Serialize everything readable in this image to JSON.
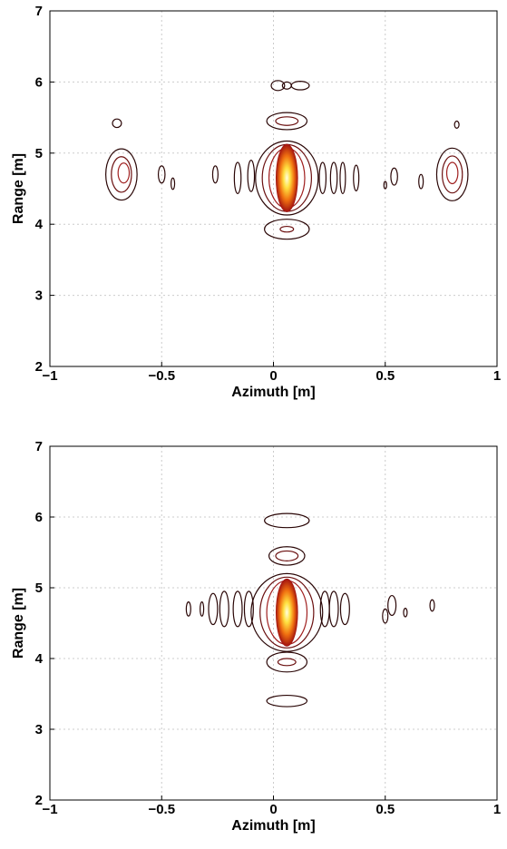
{
  "chart_data": [
    {
      "type": "contour",
      "xlabel": "Azimuth [m]",
      "ylabel": "Range [m]",
      "xlim": [
        -1,
        1
      ],
      "ylim": [
        2,
        7
      ],
      "xticks": [
        {
          "value": -1,
          "label": "−1"
        },
        {
          "value": -0.5,
          "label": "−0.5"
        },
        0,
        0.5,
        1
      ],
      "yticks": [
        2,
        3,
        4,
        5,
        6,
        7
      ],
      "grid": true,
      "peak": {
        "x": 0.06,
        "y": 4.65,
        "rx": 0.05,
        "ry": 0.48
      },
      "levels": [
        {
          "color": "#2a0606",
          "x": [
            0.06,
            0.06,
            0.06,
            0.06,
            0.02,
            0.12,
            -0.68,
            -0.7,
            0.8,
            0.82,
            -0.5,
            -0.45,
            -0.26,
            -0.16,
            -0.1,
            0.22,
            0.27,
            0.31,
            0.37,
            0.54,
            0.5,
            0.66
          ],
          "y": [
            4.65,
            5.45,
            3.93,
            5.95,
            5.95,
            5.95,
            4.7,
            5.42,
            4.7,
            5.4,
            4.7,
            4.57,
            4.7,
            4.65,
            4.68,
            4.65,
            4.65,
            4.65,
            4.65,
            4.67,
            4.55,
            4.6
          ],
          "rx": [
            0.14,
            0.09,
            0.1,
            0.02,
            0.03,
            0.04,
            0.07,
            0.02,
            0.07,
            0.01,
            0.015,
            0.008,
            0.012,
            0.015,
            0.015,
            0.015,
            0.015,
            0.012,
            0.012,
            0.015,
            0.006,
            0.01
          ],
          "ry": [
            0.52,
            0.12,
            0.14,
            0.05,
            0.07,
            0.06,
            0.36,
            0.06,
            0.37,
            0.05,
            0.12,
            0.08,
            0.12,
            0.22,
            0.22,
            0.22,
            0.22,
            0.22,
            0.18,
            0.12,
            0.05,
            0.1
          ]
        },
        {
          "color": "#6b1010",
          "x": [
            0.06,
            0.06,
            -0.68,
            0.8,
            0.06
          ],
          "y": [
            4.65,
            5.45,
            4.7,
            4.7,
            3.93
          ],
          "rx": [
            0.11,
            0.05,
            0.045,
            0.045,
            0.03
          ],
          "ry": [
            0.47,
            0.06,
            0.25,
            0.26,
            0.04
          ]
        },
        {
          "color": "#a02020",
          "x": [
            0.06,
            -0.67,
            0.8
          ],
          "y": [
            4.65,
            4.72,
            4.72
          ],
          "rx": [
            0.08,
            0.025,
            0.025
          ],
          "ry": [
            0.42,
            0.14,
            0.15
          ]
        }
      ]
    },
    {
      "type": "contour",
      "xlabel": "Azimuth [m]",
      "ylabel": "Range [m]",
      "xlim": [
        -1,
        1
      ],
      "ylim": [
        2,
        7
      ],
      "xticks": [
        {
          "value": -1,
          "label": "−1"
        },
        {
          "value": -0.5,
          "label": "−0.5"
        },
        0,
        0.5,
        1
      ],
      "yticks": [
        2,
        3,
        4,
        5,
        6,
        7
      ],
      "grid": true,
      "peak": {
        "x": 0.06,
        "y": 4.65,
        "rx": 0.05,
        "ry": 0.48
      },
      "levels": [
        {
          "color": "#2a0606",
          "x": [
            0.06,
            0.06,
            0.06,
            0.06,
            0.06,
            -0.38,
            -0.32,
            -0.27,
            -0.22,
            -0.16,
            -0.11,
            0.23,
            0.27,
            0.32,
            0.5,
            0.53,
            0.59,
            0.71
          ],
          "y": [
            4.65,
            5.95,
            5.45,
            3.95,
            3.4,
            4.7,
            4.7,
            4.7,
            4.7,
            4.7,
            4.7,
            4.7,
            4.7,
            4.7,
            4.6,
            4.75,
            4.65,
            4.75
          ],
          "rx": [
            0.16,
            0.1,
            0.08,
            0.09,
            0.09,
            0.01,
            0.008,
            0.02,
            0.02,
            0.02,
            0.02,
            0.02,
            0.02,
            0.02,
            0.012,
            0.018,
            0.008,
            0.01
          ],
          "ry": [
            0.55,
            0.1,
            0.13,
            0.14,
            0.08,
            0.1,
            0.1,
            0.22,
            0.25,
            0.25,
            0.25,
            0.25,
            0.25,
            0.22,
            0.1,
            0.14,
            0.06,
            0.08
          ]
        },
        {
          "color": "#6b1010",
          "x": [
            0.06,
            0.06,
            0.06
          ],
          "y": [
            4.65,
            5.45,
            3.95
          ],
          "rx": [
            0.12,
            0.05,
            0.04
          ],
          "ry": [
            0.5,
            0.07,
            0.05
          ]
        },
        {
          "color": "#a02020",
          "x": [
            0.06
          ],
          "y": [
            4.65
          ],
          "rx": [
            0.09
          ],
          "ry": [
            0.45
          ]
        }
      ]
    }
  ]
}
